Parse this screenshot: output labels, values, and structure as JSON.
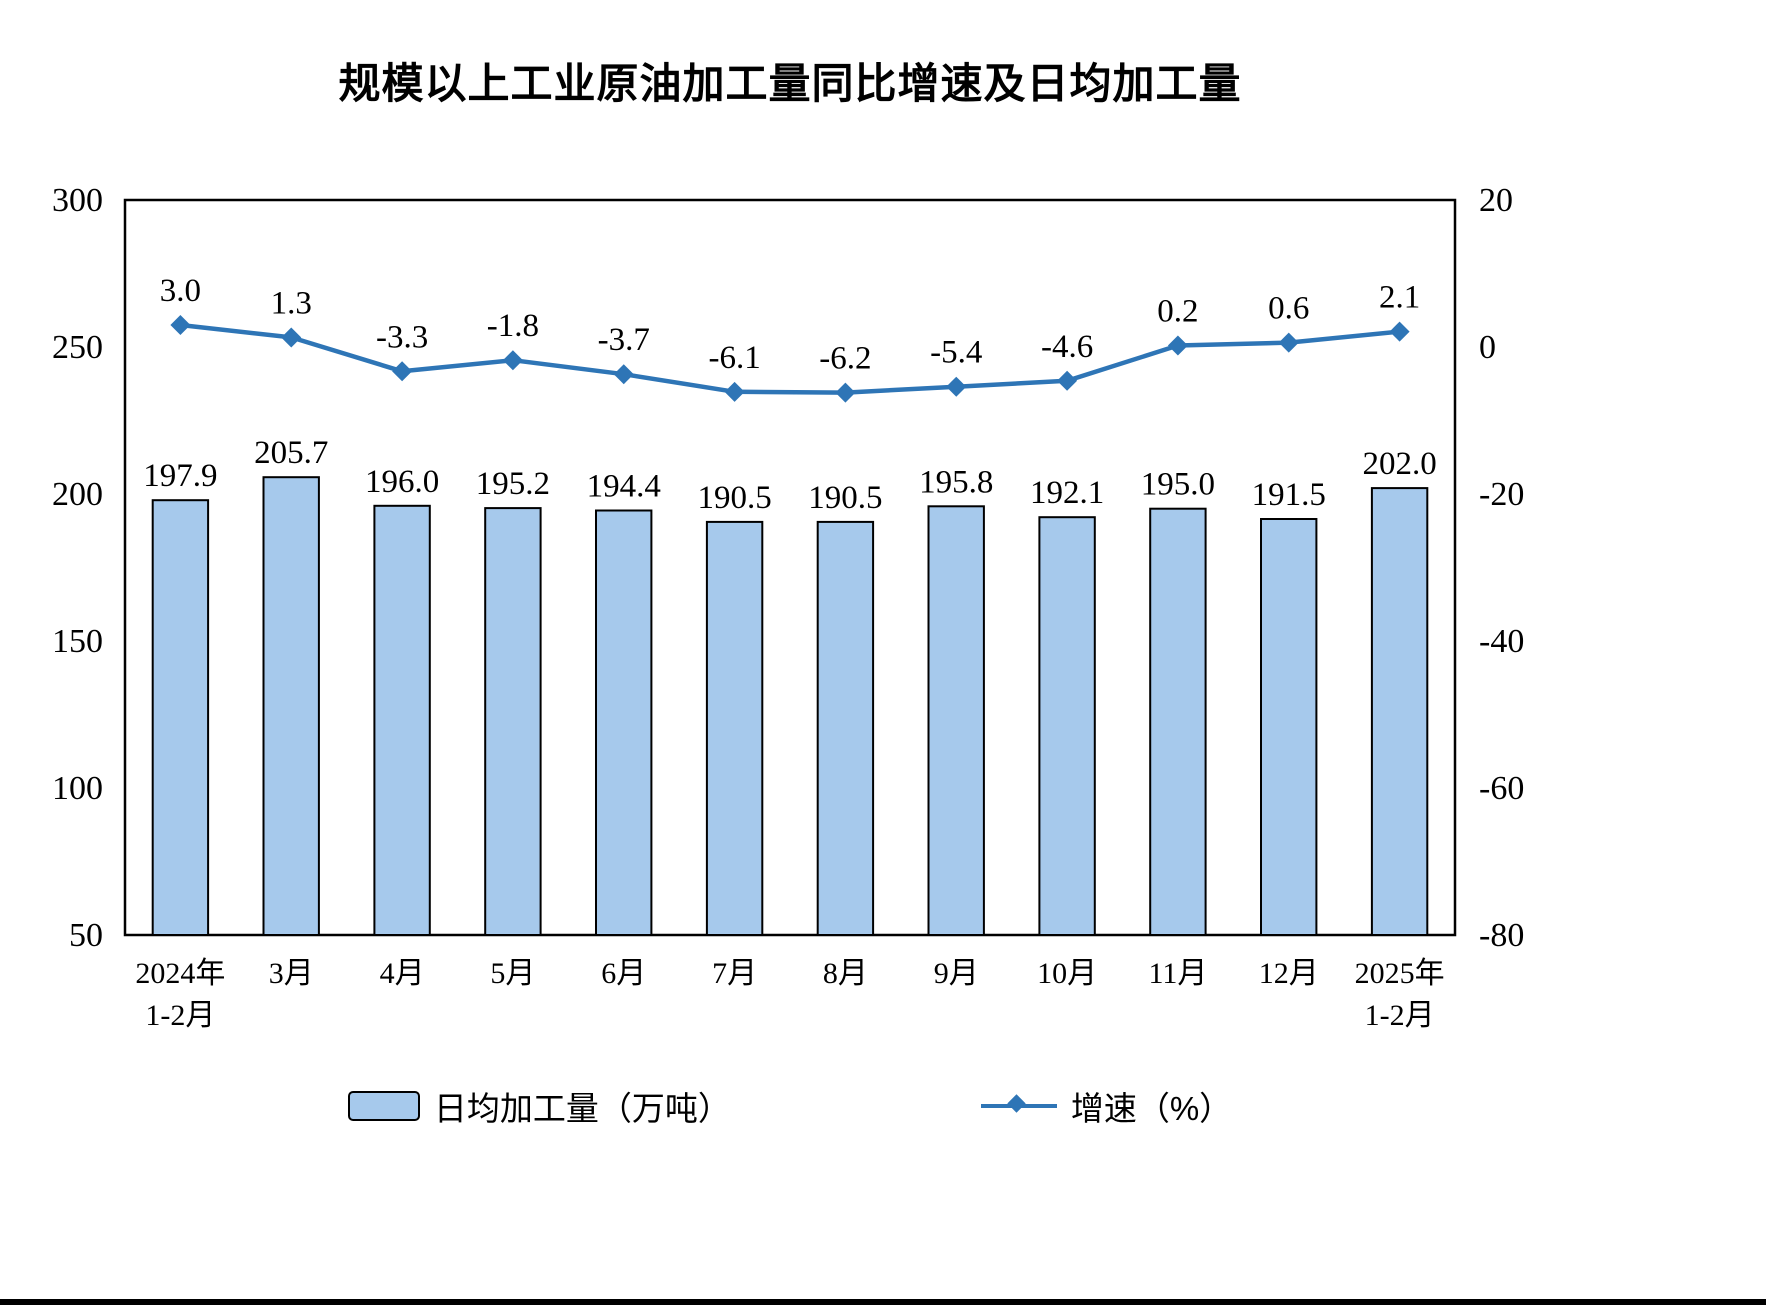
{
  "chart_data": {
    "type": "bar",
    "subtype": "combo-bar-line",
    "title": "规模以上工业原油加工量同比增速及日均加工量",
    "categories": [
      "2024年\n1-2月",
      "3月",
      "4月",
      "5月",
      "6月",
      "7月",
      "8月",
      "9月",
      "10月",
      "11月",
      "12月",
      "2025年\n1-2月"
    ],
    "series": [
      {
        "name": "日均加工量（万吨）",
        "type": "bar",
        "axis": "left",
        "values": [
          197.9,
          205.7,
          196.0,
          195.2,
          194.4,
          190.5,
          190.5,
          195.8,
          192.1,
          195.0,
          191.5,
          202.0
        ],
        "color": "#A6C9EC",
        "border_color": "#000000"
      },
      {
        "name": "增速（%）",
        "type": "line",
        "axis": "right",
        "values": [
          3.0,
          1.3,
          -3.3,
          -1.8,
          -3.7,
          -6.1,
          -6.2,
          -5.4,
          -4.6,
          0.2,
          0.6,
          2.1
        ],
        "color": "#2E75B6"
      }
    ],
    "left_axis": {
      "min": 50,
      "max": 300,
      "ticks": [
        300,
        250,
        200,
        150,
        100,
        50
      ]
    },
    "right_axis": {
      "min": -80,
      "max": 20,
      "ticks": [
        20,
        0,
        -20,
        -40,
        -60,
        -80
      ]
    },
    "grid": "off",
    "legend_position": "bottom"
  }
}
